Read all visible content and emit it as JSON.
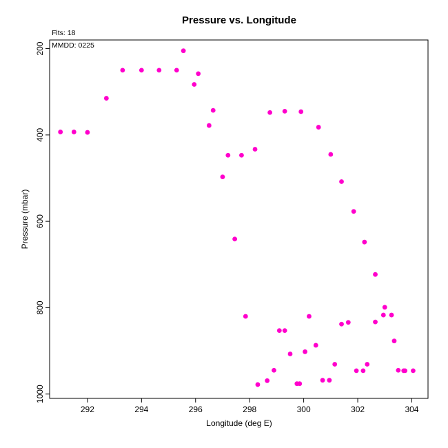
{
  "chart_data": {
    "type": "scatter",
    "title": "Pressure vs. Longitude",
    "xlabel": "Longitude (deg E)",
    "ylabel": "Pressure (mbar)",
    "annotations": [
      "Flts: 18",
      "MMDD: 0225"
    ],
    "xlim": [
      290.6,
      304.6
    ],
    "ylim": [
      1010,
      180
    ],
    "y_axis_inverted": true,
    "x_ticks": [
      292,
      294,
      296,
      298,
      300,
      302,
      304
    ],
    "y_ticks": [
      200,
      400,
      600,
      800,
      1000
    ],
    "grid": false,
    "marker_color": "#ff00cc",
    "series": [
      {
        "points": [
          [
            291.0,
            393
          ],
          [
            291.5,
            393
          ],
          [
            292.0,
            394
          ],
          [
            292.7,
            315
          ],
          [
            293.3,
            250
          ],
          [
            294.0,
            250
          ],
          [
            294.65,
            250
          ],
          [
            295.3,
            250
          ],
          [
            295.55,
            205
          ],
          [
            295.95,
            283
          ],
          [
            296.1,
            258
          ],
          [
            296.5,
            378
          ],
          [
            296.65,
            343
          ],
          [
            297.0,
            497
          ],
          [
            297.2,
            447
          ],
          [
            297.45,
            641
          ],
          [
            297.7,
            447
          ],
          [
            297.85,
            820
          ],
          [
            298.2,
            433
          ],
          [
            298.3,
            978
          ],
          [
            298.65,
            969
          ],
          [
            298.75,
            348
          ],
          [
            298.9,
            945
          ],
          [
            299.1,
            853
          ],
          [
            299.3,
            345
          ],
          [
            299.3,
            853
          ],
          [
            299.5,
            907
          ],
          [
            299.75,
            976
          ],
          [
            299.85,
            976
          ],
          [
            299.9,
            346
          ],
          [
            300.05,
            902
          ],
          [
            300.2,
            820
          ],
          [
            300.45,
            887
          ],
          [
            300.55,
            382
          ],
          [
            300.7,
            968
          ],
          [
            300.95,
            968
          ],
          [
            301.0,
            445
          ],
          [
            301.15,
            931
          ],
          [
            301.4,
            508
          ],
          [
            301.4,
            838
          ],
          [
            301.65,
            834
          ],
          [
            301.85,
            577
          ],
          [
            301.95,
            946
          ],
          [
            302.2,
            946
          ],
          [
            302.25,
            648
          ],
          [
            302.35,
            931
          ],
          [
            302.65,
            723
          ],
          [
            302.65,
            833
          ],
          [
            302.95,
            817
          ],
          [
            303.0,
            799
          ],
          [
            303.25,
            817
          ],
          [
            303.35,
            877
          ],
          [
            303.5,
            945
          ],
          [
            303.7,
            946
          ],
          [
            303.75,
            946
          ],
          [
            304.05,
            946
          ]
        ]
      }
    ]
  }
}
